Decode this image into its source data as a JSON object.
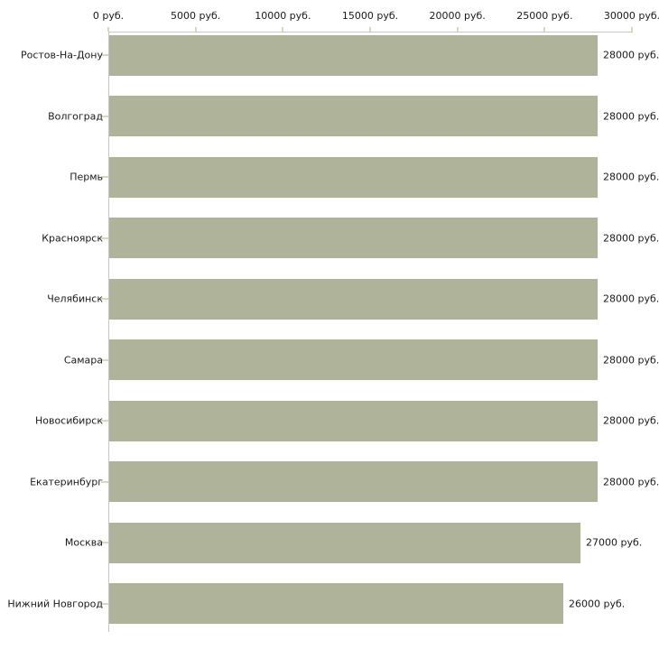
{
  "chart_data": {
    "type": "bar",
    "orientation": "horizontal",
    "title": "",
    "xlabel": "",
    "ylabel": "",
    "unit": "руб.",
    "categories": [
      "Ростов-На-Дону",
      "Волгоград",
      "Пермь",
      "Красноярск",
      "Челябинск",
      "Самара",
      "Новосибирск",
      "Екатеринбург",
      "Москва",
      "Нижний Новгород"
    ],
    "values": [
      28000,
      28000,
      28000,
      28000,
      28000,
      28000,
      28000,
      28000,
      27000,
      26000
    ],
    "value_labels": [
      "28000 руб.",
      "28000 руб.",
      "28000 руб.",
      "28000 руб.",
      "28000 руб.",
      "28000 руб.",
      "28000 руб.",
      "28000 руб.",
      "27000 руб.",
      "26000 руб."
    ],
    "xlim": [
      0,
      30000
    ],
    "x_ticks": [
      {
        "value": 0,
        "label": "0 руб."
      },
      {
        "value": 5000,
        "label": "5000 руб."
      },
      {
        "value": 10000,
        "label": "10000 руб."
      },
      {
        "value": 15000,
        "label": "15000 руб."
      },
      {
        "value": 20000,
        "label": "20000 руб."
      },
      {
        "value": 25000,
        "label": "25000 руб."
      },
      {
        "value": 30000,
        "label": "30000 руб."
      }
    ],
    "grid": "off",
    "legend": "none",
    "colors": {
      "bar": "#aeb399",
      "axis": "#c6c6c4",
      "tick": "#d8dab4",
      "text": "#1a1a1a",
      "background": "#ffffff"
    }
  }
}
